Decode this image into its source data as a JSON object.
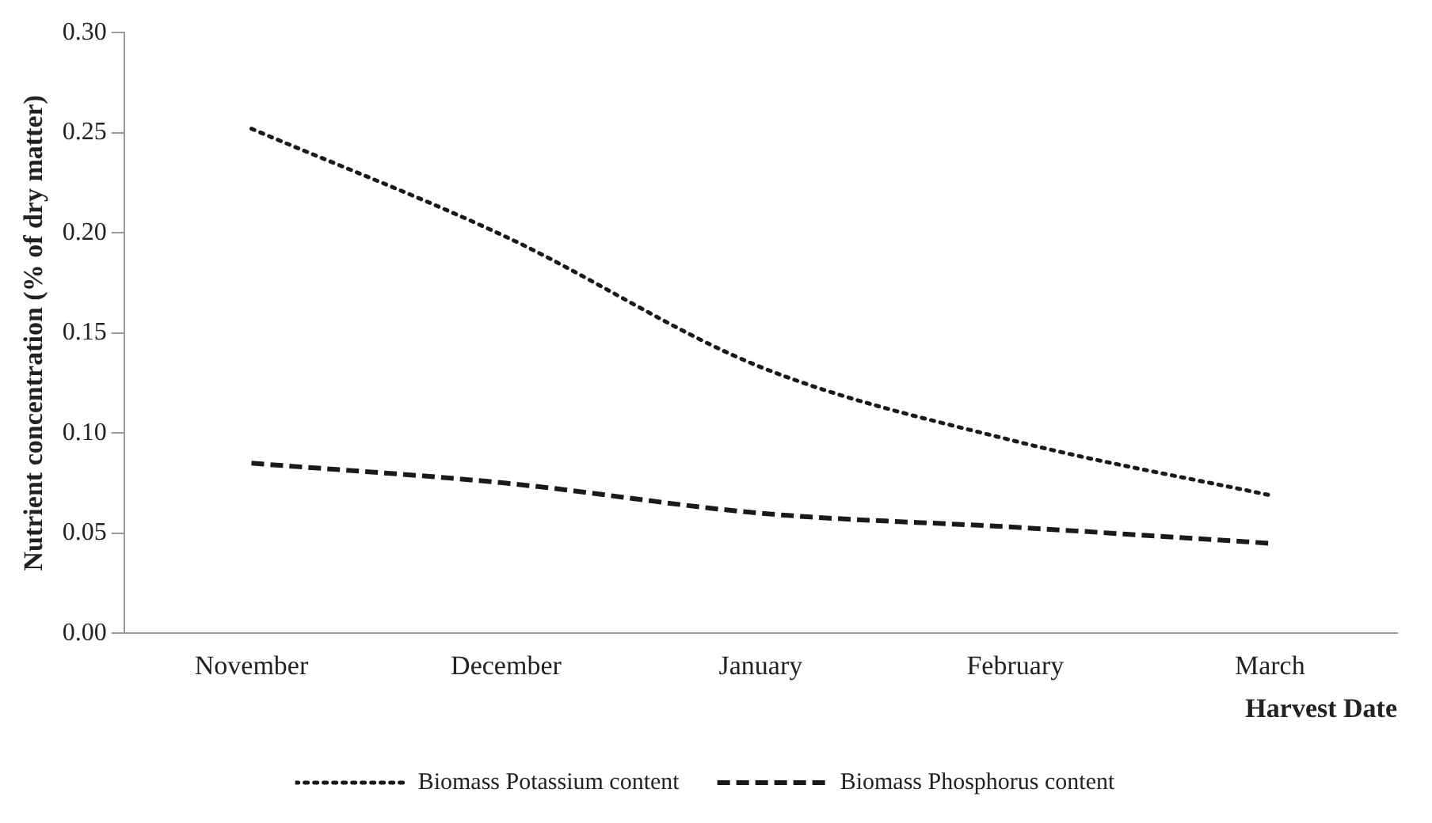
{
  "chart_data": {
    "type": "line",
    "xlabel": "Harvest Date",
    "ylabel": "Nutrient concentration (% of dry matter)",
    "categories": [
      "November",
      "December",
      "January",
      "February",
      "March"
    ],
    "series": [
      {
        "name": "Biomass Potassium content",
        "color": "#1a1a1a",
        "line_style": "dotted",
        "values": [
          0.252,
          0.198,
          0.133,
          0.096,
          0.069
        ]
      },
      {
        "name": "Biomass Phosphorus content",
        "color": "#1a1a1a",
        "line_style": "dashed",
        "values": [
          0.085,
          0.075,
          0.06,
          0.053,
          0.045
        ]
      }
    ],
    "ylim": [
      0,
      0.3
    ],
    "yticks": [
      {
        "value": 0,
        "label": "0.00"
      },
      {
        "value": 0.05,
        "label": "0.05"
      },
      {
        "value": 0.1,
        "label": "0.10"
      },
      {
        "value": 0.15,
        "label": "0.15"
      },
      {
        "value": 0.2,
        "label": "0.20"
      },
      {
        "value": 0.25,
        "label": "0.25"
      },
      {
        "value": 0.3,
        "label": "0.30"
      }
    ],
    "grid": false,
    "legend": "bottom",
    "marker": "none"
  }
}
